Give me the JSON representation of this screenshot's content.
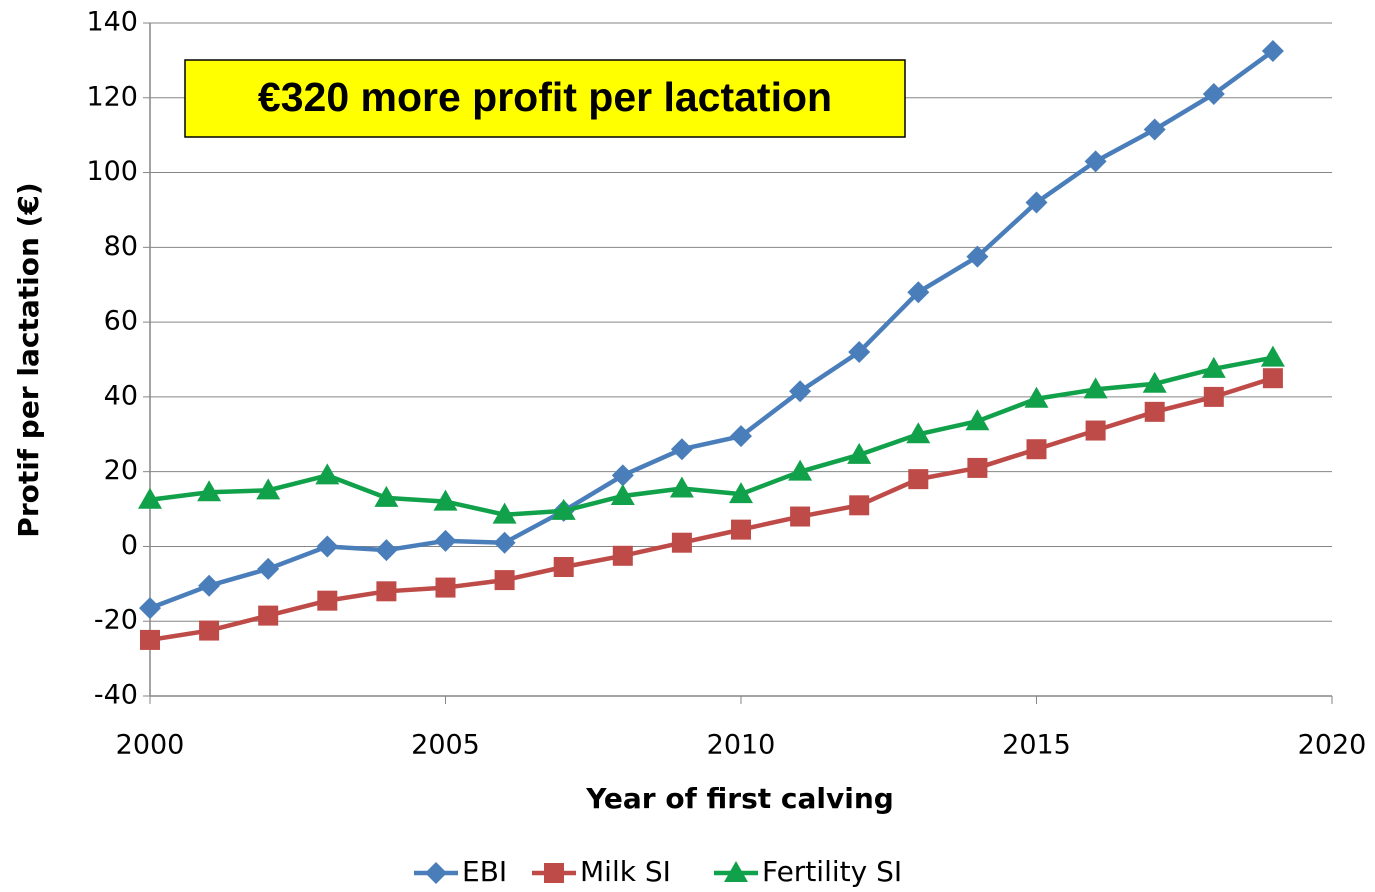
{
  "chart_data": {
    "type": "line",
    "annotation": "€320 more profit per lactation",
    "x_label": "Year of first calving",
    "y_label": "Protif per lactation (€)",
    "x": [
      2000,
      2001,
      2002,
      2003,
      2004,
      2005,
      2006,
      2007,
      2008,
      2009,
      2010,
      2011,
      2012,
      2013,
      2014,
      2015,
      2016,
      2017,
      2018,
      2019
    ],
    "series": [
      {
        "name": "EBI",
        "color": "#4a7ebb",
        "marker": "diamond",
        "values": [
          -16.5,
          -10.5,
          -6,
          0,
          -1,
          1.5,
          1,
          9.5,
          19,
          26,
          29.5,
          41.5,
          52,
          68,
          77.5,
          92,
          103,
          111.5,
          121,
          132.5
        ]
      },
      {
        "name": "Milk SI",
        "color": "#be4b48",
        "marker": "square",
        "values": [
          -25,
          -22.5,
          -18.5,
          -14.5,
          -12,
          -11,
          -9,
          -5.5,
          -2.5,
          1,
          4.5,
          8,
          11,
          18,
          21,
          26,
          31,
          36,
          40,
          45
        ]
      },
      {
        "name": "Fertility SI",
        "color": "#12a14b",
        "marker": "triangle",
        "values": [
          12.5,
          14.5,
          15,
          19,
          13,
          12,
          8.5,
          9.5,
          13.5,
          15.5,
          14,
          20,
          24.5,
          30,
          33.5,
          39.5,
          42,
          43.5,
          47.5,
          50.5
        ]
      }
    ],
    "xlim": [
      2000,
      2020
    ],
    "xticks": [
      2000,
      2005,
      2010,
      2015,
      2020
    ],
    "ylim": [
      -40,
      140
    ],
    "yticks": [
      -40,
      -20,
      0,
      20,
      40,
      60,
      80,
      100,
      120,
      140
    ],
    "grid": true,
    "legend": "bottom"
  }
}
